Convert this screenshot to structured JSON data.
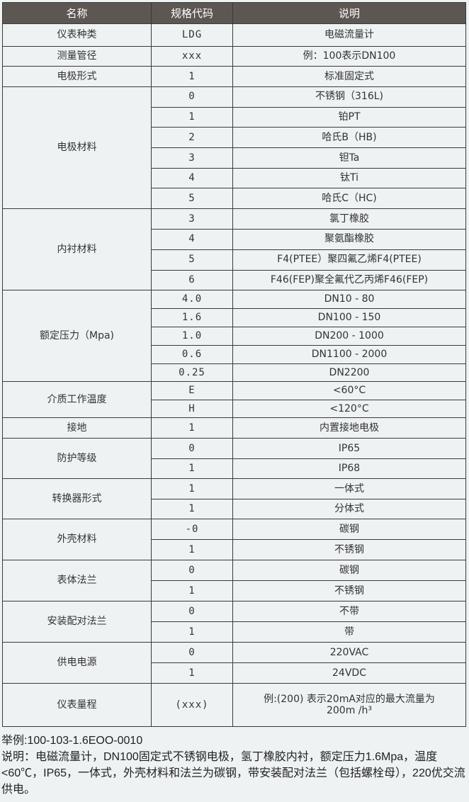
{
  "header": {
    "name": "名称",
    "code": "规格代码",
    "desc": "说明"
  },
  "groups": [
    {
      "name": "仪表种类",
      "h": 32,
      "rows": [
        [
          "LDG",
          "电磁流量计"
        ]
      ]
    },
    {
      "name": "测量管径",
      "h": 28,
      "rows": [
        [
          "xxx",
          "例：100表示DN100"
        ]
      ]
    },
    {
      "name": "电极形式",
      "h": 29,
      "rows": [
        [
          "1",
          "标准固定式"
        ]
      ]
    },
    {
      "name": "电极材料",
      "h": 28.7,
      "rows": [
        [
          "0",
          "不锈钢（316L)"
        ],
        [
          "1",
          "铂PT"
        ],
        [
          "2",
          "哈氏B（HB)"
        ],
        [
          "3",
          "钽Ta"
        ],
        [
          "4",
          "钛Ti"
        ],
        [
          "5",
          "哈氏C（HC)"
        ]
      ]
    },
    {
      "name": "内衬材料",
      "h": 28.8,
      "rows": [
        [
          "3",
          "氯丁橡胶"
        ],
        [
          "4",
          "聚氨酯橡胶"
        ],
        [
          "5",
          "F4(PTEE）聚四氟乙烯F4(PTEE)"
        ],
        [
          "6",
          "F46(FEP)聚全氟代乙丙烯F46(FEP)"
        ]
      ]
    },
    {
      "name": "额定压力（Mpa)",
      "h": 25.8,
      "rows": [
        [
          "4.0",
          "DN10 - 80"
        ],
        [
          "1.6",
          "DN100 - 150"
        ],
        [
          "1.0",
          "DN200 - 1000"
        ],
        [
          "0.6",
          "DN1100 - 2000"
        ],
        [
          "0.25",
          "DN2200"
        ]
      ]
    },
    {
      "name": "介质工作温度",
      "h": 25.5,
      "rows": [
        [
          "E",
          "<60°C"
        ],
        [
          "H",
          "<120°C"
        ]
      ]
    },
    {
      "name": "接地",
      "h": 29,
      "rows": [
        [
          "1",
          "内置接地电极"
        ]
      ]
    },
    {
      "name": "防护等级",
      "h": 28.5,
      "rows": [
        [
          "0",
          "IP65"
        ],
        [
          "1",
          "IP68"
        ]
      ]
    },
    {
      "name": "转换器形式",
      "h": 28.5,
      "rows": [
        [
          "1",
          "一体式"
        ],
        [
          "1",
          "分体式"
        ]
      ]
    },
    {
      "name": "外壳材料",
      "h": 29,
      "rows": [
        [
          "-0",
          "碳钢"
        ],
        [
          "1",
          "不锈钢"
        ]
      ]
    },
    {
      "name": "表体法兰",
      "h": 29,
      "rows": [
        [
          "0",
          "碳钢"
        ],
        [
          "1",
          "不锈钢"
        ]
      ]
    },
    {
      "name": "安装配对法兰",
      "h": 29,
      "rows": [
        [
          "0",
          "不带"
        ],
        [
          "1",
          "带"
        ]
      ]
    },
    {
      "name": "供电电源",
      "h": 29,
      "rows": [
        [
          "0",
          "220VAC"
        ],
        [
          "1",
          "24VDC"
        ]
      ]
    },
    {
      "name": "仪表量程",
      "h": 61,
      "rows": [
        [
          "(xxx)",
          "例:(200) 表示20mA对应的最大流量为200m /h³"
        ]
      ]
    }
  ],
  "notes": {
    "example": "举例:100-103-1.6EOO-0010",
    "explanation": "说明：电磁流量计，DN100固定式不锈钢电极，氢丁橡胶内衬，额定压力1.6Mpa，温度<60℃，IP65，一体式，外壳材料和法兰为碳钢，带安装配对法兰（包括螺栓母），220优交流供电。"
  }
}
